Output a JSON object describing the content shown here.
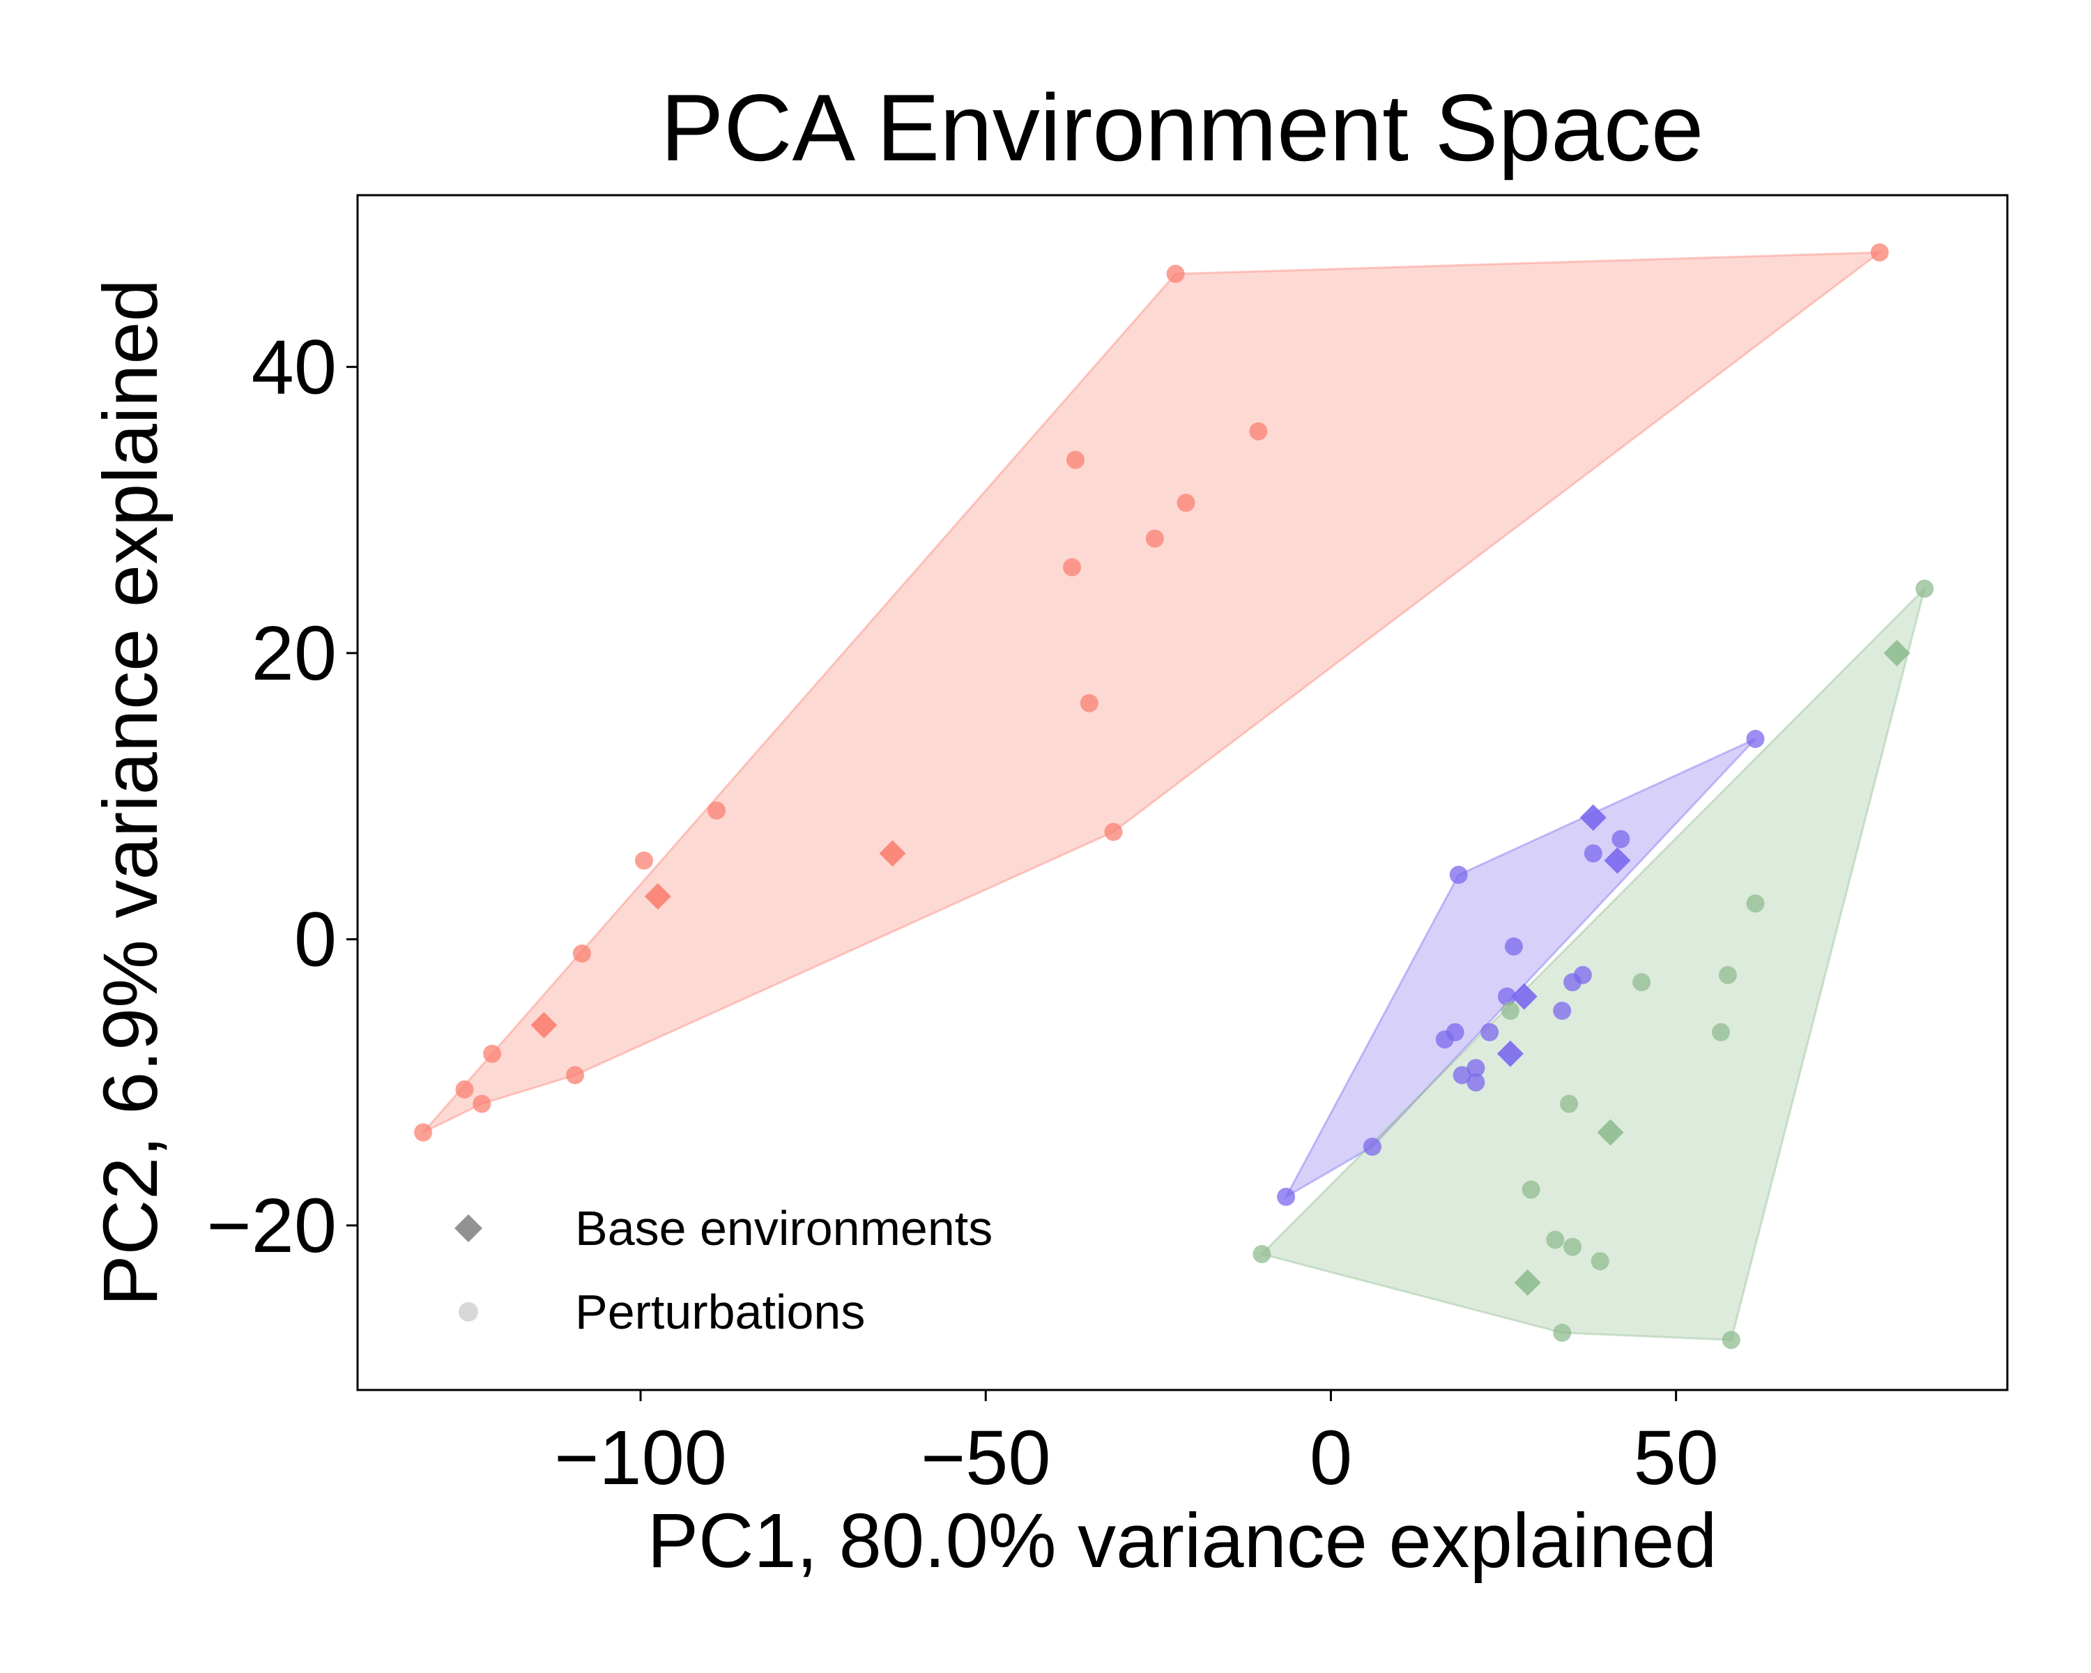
{
  "chart_data": {
    "type": "scatter",
    "title": "PCA Environment Space",
    "xlabel": "PC1, 80.0% variance explained",
    "ylabel": "PC2, 6.9% variance explained",
    "xlim": [
      -141,
      98
    ],
    "ylim": [
      -31.5,
      52
    ],
    "x_ticks": [
      -100,
      -50,
      0,
      50
    ],
    "x_tick_labels": [
      "−100",
      "−50",
      "0",
      "50"
    ],
    "y_ticks": [
      -20,
      0,
      20,
      40
    ],
    "y_tick_labels": [
      "−20",
      "0",
      "20",
      "40"
    ],
    "grid": false,
    "legend_position": "lower-left",
    "legend": [
      {
        "label": "Base environments",
        "marker": "diamond",
        "color": "#7f7f7f"
      },
      {
        "label": "Perturbations",
        "marker": "circle",
        "color": "#c8c8c8"
      }
    ],
    "groups": [
      {
        "color": "#fa8072",
        "hull": [
          [
            -131.5,
            -13.5
          ],
          [
            -22.5,
            46.5
          ],
          [
            79.5,
            48
          ],
          [
            -31.5,
            7.5
          ],
          [
            -109.5,
            -9.5
          ],
          [
            -123,
            -11.5
          ]
        ],
        "base": [
          [
            -97.5,
            3
          ],
          [
            -63.5,
            6
          ],
          [
            -114,
            -6
          ]
        ],
        "perturbations": [
          [
            -131.5,
            -13.5
          ],
          [
            -123,
            -11.5
          ],
          [
            -121.5,
            -8
          ],
          [
            -125.5,
            -10.5
          ],
          [
            -109.5,
            -9.5
          ],
          [
            -108.5,
            -1
          ],
          [
            -99.5,
            5.5
          ],
          [
            -89,
            9
          ],
          [
            -31.5,
            7.5
          ],
          [
            -35,
            16.5
          ],
          [
            -37.5,
            26
          ],
          [
            -37,
            33.5
          ],
          [
            -25.5,
            28
          ],
          [
            -21,
            30.5
          ],
          [
            -10.5,
            35.5
          ],
          [
            -22.5,
            46.5
          ],
          [
            79.5,
            48
          ]
        ]
      },
      {
        "color": "#7b68ee",
        "hull": [
          [
            -6.5,
            -18
          ],
          [
            18.5,
            4.5
          ],
          [
            61.5,
            14
          ],
          [
            6,
            -14.5
          ]
        ],
        "base": [
          [
            38,
            8.5
          ],
          [
            41.5,
            5.5
          ],
          [
            28,
            -4
          ],
          [
            26,
            -8
          ]
        ],
        "perturbations": [
          [
            61.5,
            14
          ],
          [
            18.5,
            4.5
          ],
          [
            38,
            6
          ],
          [
            42,
            7
          ],
          [
            26.5,
            -0.5
          ],
          [
            35,
            -3
          ],
          [
            36.5,
            -2.5
          ],
          [
            25.5,
            -4
          ],
          [
            33.5,
            -5
          ],
          [
            23,
            -6.5
          ],
          [
            18,
            -6.5
          ],
          [
            16.5,
            -7
          ],
          [
            21,
            -9
          ],
          [
            19,
            -9.5
          ],
          [
            21,
            -10
          ],
          [
            6,
            -14.5
          ],
          [
            -6.5,
            -18
          ]
        ]
      },
      {
        "color": "#8fbc8f",
        "hull": [
          [
            -10,
            -22
          ],
          [
            86,
            24.5
          ],
          [
            58,
            -28
          ],
          [
            33.5,
            -27.5
          ]
        ],
        "base": [
          [
            82,
            20
          ],
          [
            40.5,
            -13.5
          ],
          [
            28.5,
            -24
          ]
        ],
        "perturbations": [
          [
            86,
            24.5
          ],
          [
            61.5,
            2.5
          ],
          [
            57.5,
            -2.5
          ],
          [
            56.5,
            -6.5
          ],
          [
            45,
            -3
          ],
          [
            26,
            -5
          ],
          [
            34.5,
            -11.5
          ],
          [
            29,
            -17.5
          ],
          [
            32.5,
            -21
          ],
          [
            35,
            -21.5
          ],
          [
            39,
            -22.5
          ],
          [
            -10,
            -22
          ],
          [
            33.5,
            -27.5
          ],
          [
            58,
            -28
          ]
        ]
      }
    ]
  }
}
